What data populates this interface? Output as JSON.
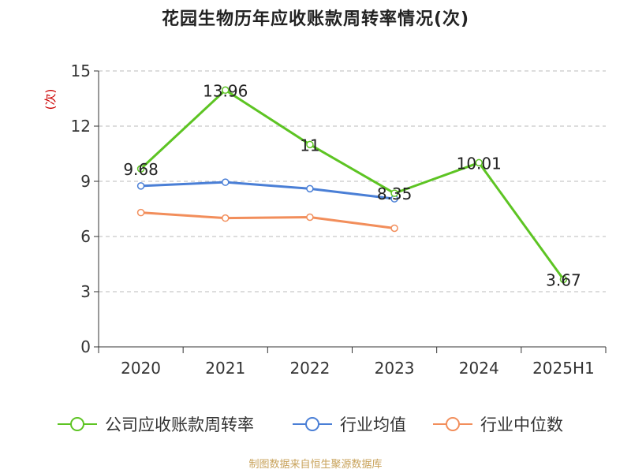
{
  "chart_data": {
    "type": "line",
    "title": "花园生物历年应收账款周转率情况(次)",
    "ylabel": "(次)",
    "xlabel": "",
    "categories": [
      "2020",
      "2021",
      "2022",
      "2023",
      "2024",
      "2025H1"
    ],
    "ylim": [
      0,
      15
    ],
    "yticks": [
      0,
      3,
      6,
      9,
      12,
      15
    ],
    "grid": true,
    "legend_position": "bottom",
    "series": [
      {
        "name": "公司应收账款周转率",
        "color": "#5dc423",
        "values": [
          9.68,
          13.96,
          11,
          8.35,
          10.01,
          3.67
        ],
        "labels": [
          "9.68",
          "13.96",
          "11",
          "8.35",
          "10.01",
          "3.67"
        ]
      },
      {
        "name": "行业均值",
        "color": "#4a7fd6",
        "values": [
          8.75,
          8.95,
          8.6,
          8.05,
          null,
          null
        ]
      },
      {
        "name": "行业中位数",
        "color": "#f28e5b",
        "values": [
          7.3,
          7.0,
          7.05,
          6.45,
          null,
          null
        ]
      }
    ]
  },
  "source": "制图数据来自恒生聚源数据库",
  "ylabel_color": "#cc0000"
}
